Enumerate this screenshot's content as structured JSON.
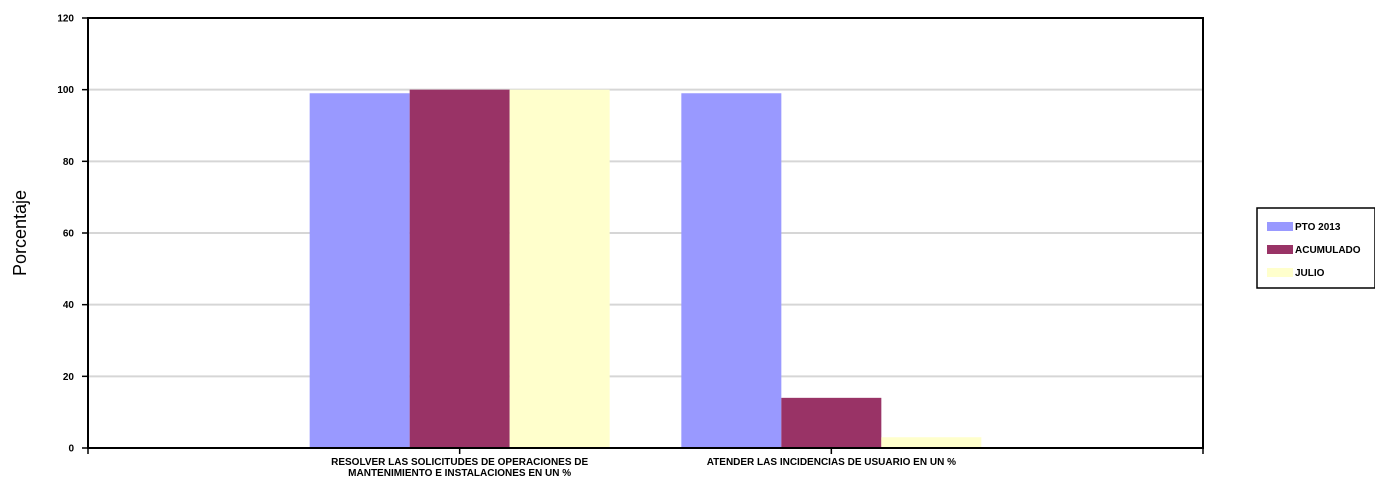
{
  "chart_data": {
    "type": "bar",
    "title": "",
    "xlabel": "",
    "ylabel": "Porcentaje",
    "ylim": [
      0,
      120
    ],
    "yticks": [
      "0",
      "20",
      "40",
      "60",
      "80",
      "100",
      "120"
    ],
    "grid": true,
    "legend_position": "right",
    "categories": [
      [
        "RESOLVER LAS SOLICITUDES DE OPERACIONES DE",
        "MANTENIMIENTO E INSTALACIONES EN UN %"
      ],
      [
        "ATENDER LAS INCIDENCIAS DE USUARIO EN UN %"
      ]
    ],
    "series": [
      {
        "name": "PTO 2013",
        "color": "#9999ff",
        "values": [
          99,
          99
        ]
      },
      {
        "name": "ACUMULADO",
        "color": "#993366",
        "values": [
          100,
          14
        ]
      },
      {
        "name": "JULIO",
        "color": "#ffffcc",
        "values": [
          100,
          3
        ]
      }
    ]
  }
}
